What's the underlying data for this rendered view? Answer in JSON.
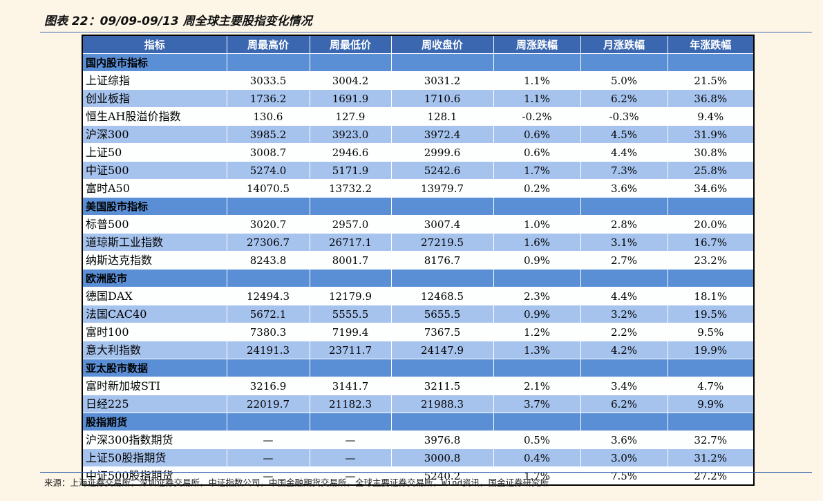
{
  "title": "图表 22：09/09-09/13 周全球主要股指变化情况",
  "columns": [
    "指标",
    "周最高价",
    "周最低价",
    "周收盘价",
    "周涨跌幅",
    "月涨跌幅",
    "年涨跌幅"
  ],
  "sections": [
    {
      "name": "国内股市指标",
      "rows": [
        [
          "上证综指",
          "3033.5",
          "3004.2",
          "3031.2",
          "1.1%",
          "5.0%",
          "21.5%"
        ],
        [
          "创业板指",
          "1736.2",
          "1691.9",
          "1710.6",
          "1.1%",
          "6.2%",
          "36.8%"
        ],
        [
          "恒生AH股溢价指数",
          "130.6",
          "127.9",
          "128.1",
          "-0.2%",
          "-0.3%",
          "9.4%"
        ],
        [
          "沪深300",
          "3985.2",
          "3923.0",
          "3972.4",
          "0.6%",
          "4.5%",
          "31.9%"
        ],
        [
          "上证50",
          "3008.7",
          "2946.6",
          "2999.6",
          "0.6%",
          "4.4%",
          "30.8%"
        ],
        [
          "中证500",
          "5274.0",
          "5171.9",
          "5242.6",
          "1.7%",
          "7.3%",
          "25.8%"
        ],
        [
          "富时A50",
          "14070.5",
          "13732.2",
          "13979.7",
          "0.2%",
          "3.6%",
          "34.6%"
        ]
      ]
    },
    {
      "name": "美国股市指标",
      "rows": [
        [
          "标普500",
          "3020.7",
          "2957.0",
          "3007.4",
          "1.0%",
          "2.8%",
          "20.0%"
        ],
        [
          "道琼斯工业指数",
          "27306.7",
          "26717.1",
          "27219.5",
          "1.6%",
          "3.1%",
          "16.7%"
        ],
        [
          "纳斯达克指数",
          "8243.8",
          "8001.7",
          "8176.7",
          "0.9%",
          "2.7%",
          "23.2%"
        ]
      ]
    },
    {
      "name": "欧洲股市",
      "rows": [
        [
          "德国DAX",
          "12494.3",
          "12179.9",
          "12468.5",
          "2.3%",
          "4.4%",
          "18.1%"
        ],
        [
          "法国CAC40",
          "5672.1",
          "5555.5",
          "5655.5",
          "0.9%",
          "3.2%",
          "19.5%"
        ],
        [
          "富时100",
          "7380.3",
          "7199.4",
          "7367.5",
          "1.2%",
          "2.2%",
          "9.5%"
        ],
        [
          "意大利指数",
          "24191.3",
          "23711.7",
          "24147.9",
          "1.3%",
          "4.2%",
          "19.9%"
        ]
      ]
    },
    {
      "name": "亚太股市数据",
      "rows": [
        [
          "富时新加坡STI",
          "3216.9",
          "3141.7",
          "3211.5",
          "2.1%",
          "3.4%",
          "4.7%"
        ],
        [
          "日经225",
          "22019.7",
          "21182.3",
          "21988.3",
          "3.7%",
          "6.2%",
          "9.9%"
        ]
      ]
    },
    {
      "name": "股指期货",
      "rows": [
        [
          "沪深300指数期货",
          "—",
          "—",
          "3976.8",
          "0.5%",
          "3.6%",
          "32.7%"
        ],
        [
          "上证50股指期货",
          "—",
          "—",
          "3000.8",
          "0.4%",
          "3.0%",
          "31.2%"
        ],
        [
          "中证500股指期货",
          "—",
          "—",
          "5240.2",
          "1.7%",
          "7.5%",
          "27.2%"
        ]
      ]
    }
  ],
  "source": "来源：上海证券交易所，深圳证券交易所，中证指数公司，中国金融期货交易所，全球主要证券交易所，Wind资讯，国金证券研究所",
  "colors": {
    "background": "#fdf6e7",
    "header": "#3a67b0",
    "section": "#5a8fd6",
    "row_blue": "#a6c3ee",
    "row_white": "#fdfefe"
  }
}
